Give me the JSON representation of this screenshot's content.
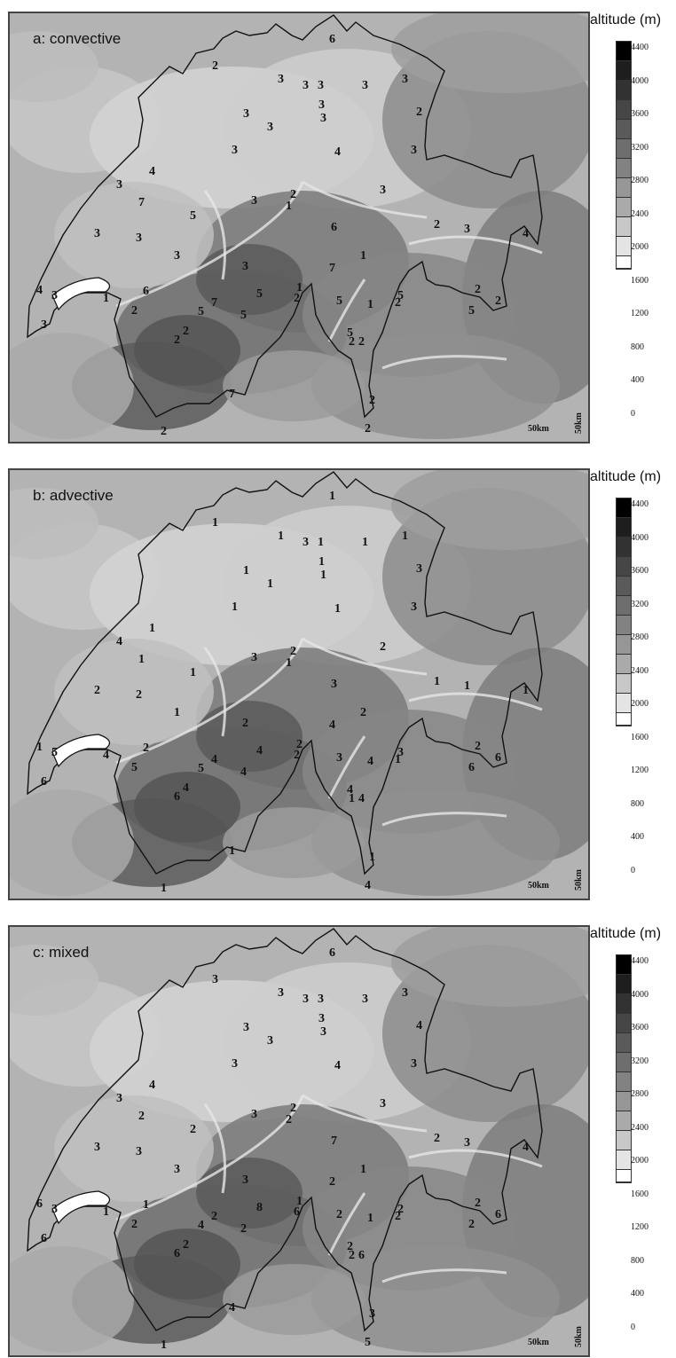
{
  "legend": {
    "title": "altitude (m)",
    "labels": [
      "4400",
      "4000",
      "3600",
      "3200",
      "2800",
      "2400",
      "2000",
      "1600",
      "1200",
      "800",
      "400",
      "0"
    ],
    "colors": [
      "#000000",
      "#1e1e1e",
      "#323232",
      "#464646",
      "#5a5a5a",
      "#6e6e6e",
      "#828282",
      "#969696",
      "#aaaaaa",
      "#c8c8c8",
      "#e4e4e4",
      "#ffffff"
    ]
  },
  "scale": {
    "x_label": "50km",
    "y_label": "50km"
  },
  "panels": [
    {
      "title": "a: convective",
      "values": [
        "6",
        "2",
        "3",
        "3",
        "3",
        "3",
        "3",
        "3",
        "3",
        "3",
        "3",
        "2",
        "3",
        "4",
        "3",
        "3",
        "4",
        "7",
        "3",
        "1",
        "2",
        "3",
        "3",
        "3",
        "5",
        "6",
        "2",
        "3",
        "4",
        "3",
        "7",
        "1",
        "3",
        "6",
        "1",
        "7",
        "5",
        "1",
        "2",
        "5",
        "1",
        "5",
        "2",
        "4",
        "3",
        "2",
        "5",
        "5",
        "2",
        "5",
        "2",
        "3",
        "2",
        "2",
        "5",
        "2",
        "2",
        "7",
        "2",
        "2",
        "2"
      ]
    },
    {
      "title": "b: advective",
      "values": [
        "1",
        "1",
        "1",
        "3",
        "1",
        "1",
        "1",
        "1",
        "1",
        "1",
        "1",
        "3",
        "1",
        "1",
        "3",
        "4",
        "1",
        "1",
        "3",
        "1",
        "2",
        "2",
        "2",
        "2",
        "1",
        "3",
        "1",
        "1",
        "1",
        "1",
        "4",
        "2",
        "2",
        "2",
        "4",
        "4",
        "4",
        "2",
        "2",
        "3",
        "4",
        "3",
        "1",
        "1",
        "5",
        "5",
        "5",
        "4",
        "2",
        "6",
        "6",
        "6",
        "6",
        "4",
        "4",
        "1",
        "4",
        "1",
        "1",
        "4",
        "1"
      ]
    },
    {
      "title": "c: mixed",
      "values": [
        "6",
        "3",
        "3",
        "3",
        "3",
        "3",
        "3",
        "3",
        "3",
        "3",
        "3",
        "4",
        "3",
        "4",
        "3",
        "3",
        "4",
        "2",
        "3",
        "2",
        "2",
        "3",
        "3",
        "3",
        "2",
        "7",
        "2",
        "3",
        "4",
        "3",
        "2",
        "1",
        "3",
        "1",
        "1",
        "2",
        "8",
        "1",
        "6",
        "2",
        "1",
        "2",
        "2",
        "6",
        "3",
        "2",
        "4",
        "2",
        "2",
        "2",
        "6",
        "6",
        "6",
        "2",
        "2",
        "2",
        "6",
        "4",
        "3",
        "5",
        "1"
      ]
    }
  ]
}
